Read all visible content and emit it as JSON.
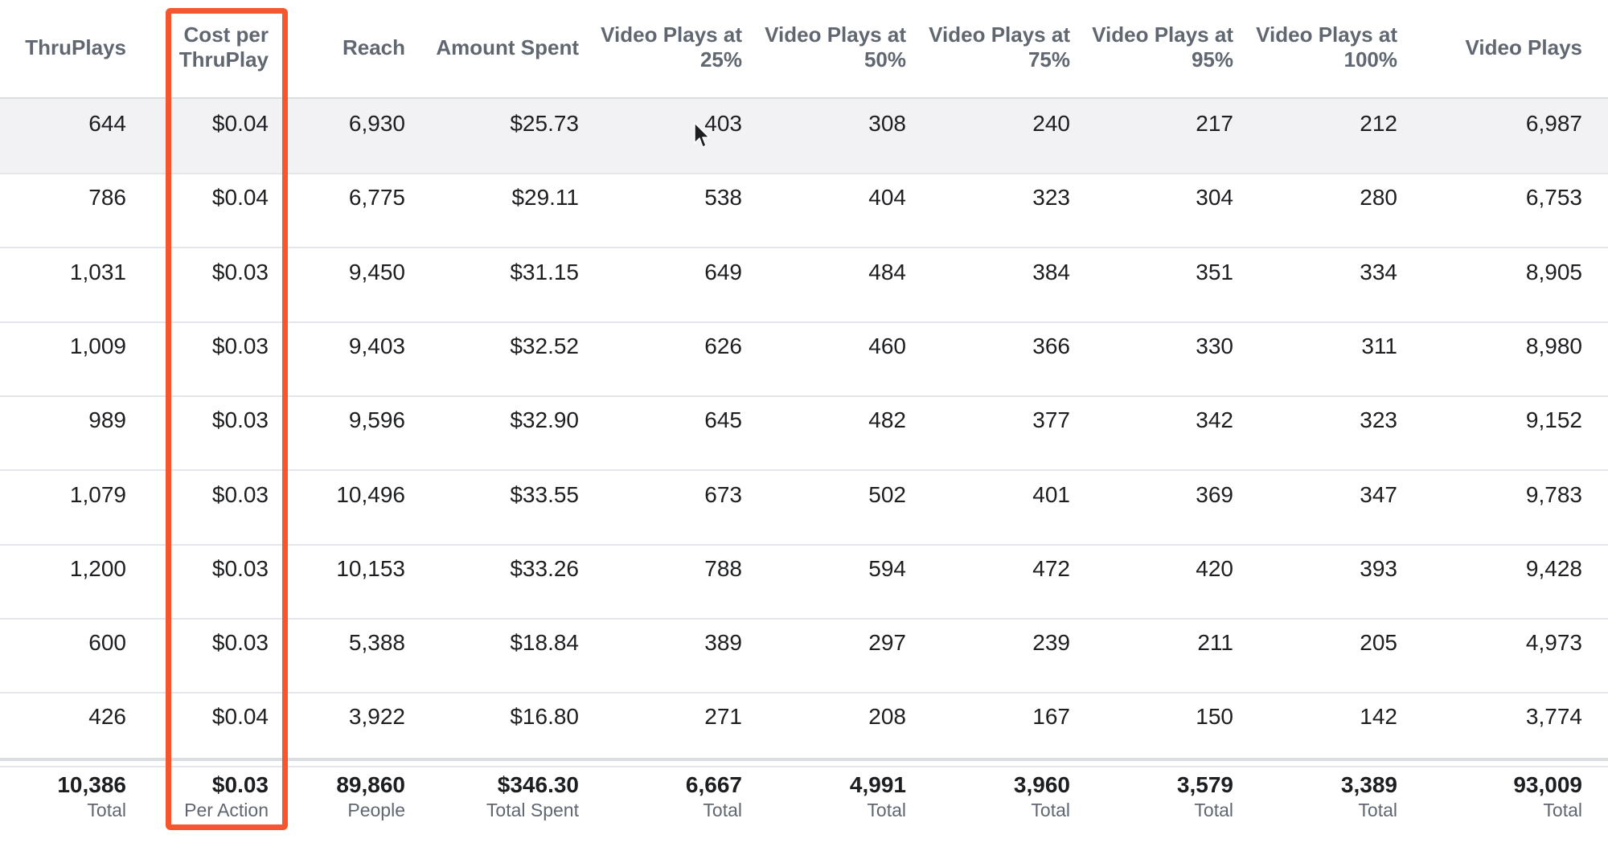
{
  "columns": [
    {
      "label": "ThruPlays",
      "total": "10,386",
      "total_label": "Total"
    },
    {
      "label": "Cost per ThruPlay",
      "total": "$0.03",
      "total_label": "Per Action"
    },
    {
      "label": "Reach",
      "total": "89,860",
      "total_label": "People"
    },
    {
      "label": "Amount Spent",
      "total": "$346.30",
      "total_label": "Total Spent"
    },
    {
      "label": "Video Plays at 25%",
      "total": "6,667",
      "total_label": "Total"
    },
    {
      "label": "Video Plays at 50%",
      "total": "4,991",
      "total_label": "Total"
    },
    {
      "label": "Video Plays at 75%",
      "total": "3,960",
      "total_label": "Total"
    },
    {
      "label": "Video Plays at 95%",
      "total": "3,579",
      "total_label": "Total"
    },
    {
      "label": "Video Plays at 100%",
      "total": "3,389",
      "total_label": "Total"
    },
    {
      "label": "Video Plays",
      "total": "93,009",
      "total_label": "Total"
    }
  ],
  "header_lines": [
    [
      "ThruPlays"
    ],
    [
      "Cost per",
      "ThruPlay"
    ],
    [
      "Reach"
    ],
    [
      "Amount Spent"
    ],
    [
      "Video Plays at",
      "25%"
    ],
    [
      "Video Plays at",
      "50%"
    ],
    [
      "Video Plays at",
      "75%"
    ],
    [
      "Video Plays at",
      "95%"
    ],
    [
      "Video Plays at",
      "100%"
    ],
    [
      "Video Plays"
    ]
  ],
  "rows": [
    [
      "644",
      "$0.04",
      "6,930",
      "$25.73",
      "403",
      "308",
      "240",
      "217",
      "212",
      "6,987"
    ],
    [
      "786",
      "$0.04",
      "6,775",
      "$29.11",
      "538",
      "404",
      "323",
      "304",
      "280",
      "6,753"
    ],
    [
      "1,031",
      "$0.03",
      "9,450",
      "$31.15",
      "649",
      "484",
      "384",
      "351",
      "334",
      "8,905"
    ],
    [
      "1,009",
      "$0.03",
      "9,403",
      "$32.52",
      "626",
      "460",
      "366",
      "330",
      "311",
      "8,980"
    ],
    [
      "989",
      "$0.03",
      "9,596",
      "$32.90",
      "645",
      "482",
      "377",
      "342",
      "323",
      "9,152"
    ],
    [
      "1,079",
      "$0.03",
      "10,496",
      "$33.55",
      "673",
      "502",
      "401",
      "369",
      "347",
      "9,783"
    ],
    [
      "1,200",
      "$0.03",
      "10,153",
      "$33.26",
      "788",
      "594",
      "472",
      "420",
      "393",
      "9,428"
    ],
    [
      "600",
      "$0.03",
      "5,388",
      "$18.84",
      "389",
      "297",
      "239",
      "211",
      "205",
      "4,973"
    ],
    [
      "426",
      "$0.04",
      "3,922",
      "$16.80",
      "271",
      "208",
      "167",
      "150",
      "142",
      "3,774"
    ]
  ],
  "highlighted_column_index": 1,
  "highlighted_row_index": 0,
  "colors": {
    "highlight_border": "#f4572d",
    "header_text": "#606770",
    "body_text": "#1c1e21",
    "row_hover_bg": "#f2f2f5"
  },
  "icons": {
    "cursor": "mouse-pointer-icon"
  }
}
